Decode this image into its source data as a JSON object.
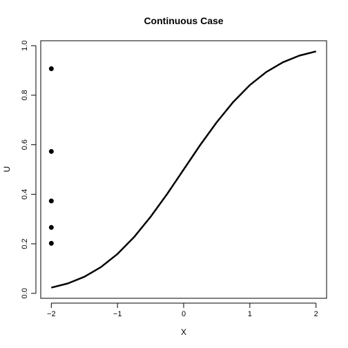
{
  "chart_data": {
    "type": "line",
    "title": "Continuous Case",
    "xlabel": "X",
    "ylabel": "U",
    "xlim": [
      -2.16,
      2.16
    ],
    "ylim": [
      -0.02,
      1.02
    ],
    "x_ticks": [
      -2,
      -1,
      0,
      1,
      2
    ],
    "x_tick_labels": [
      "−2",
      "−1",
      "0",
      "1",
      "2"
    ],
    "y_ticks": [
      0.0,
      0.2,
      0.4,
      0.6,
      0.8,
      1.0
    ],
    "y_tick_labels": [
      "0.0",
      "0.2",
      "0.4",
      "0.6",
      "0.8",
      "1.0"
    ],
    "grid": false,
    "series": [
      {
        "type": "line",
        "x": [
          -2.0,
          -1.75,
          -1.5,
          -1.25,
          -1.0,
          -0.75,
          -0.5,
          -0.25,
          0.0,
          0.25,
          0.5,
          0.75,
          1.0,
          1.25,
          1.5,
          1.75,
          2.0
        ],
        "y": [
          0.023,
          0.04,
          0.067,
          0.106,
          0.159,
          0.227,
          0.309,
          0.401,
          0.5,
          0.599,
          0.691,
          0.773,
          0.841,
          0.894,
          0.933,
          0.96,
          0.977
        ],
        "color": "#000000"
      },
      {
        "type": "scatter",
        "x": [
          -2,
          -2,
          -2,
          -2,
          -2
        ],
        "y": [
          0.907,
          0.573,
          0.373,
          0.266,
          0.202
        ],
        "color": "#000000"
      }
    ]
  }
}
